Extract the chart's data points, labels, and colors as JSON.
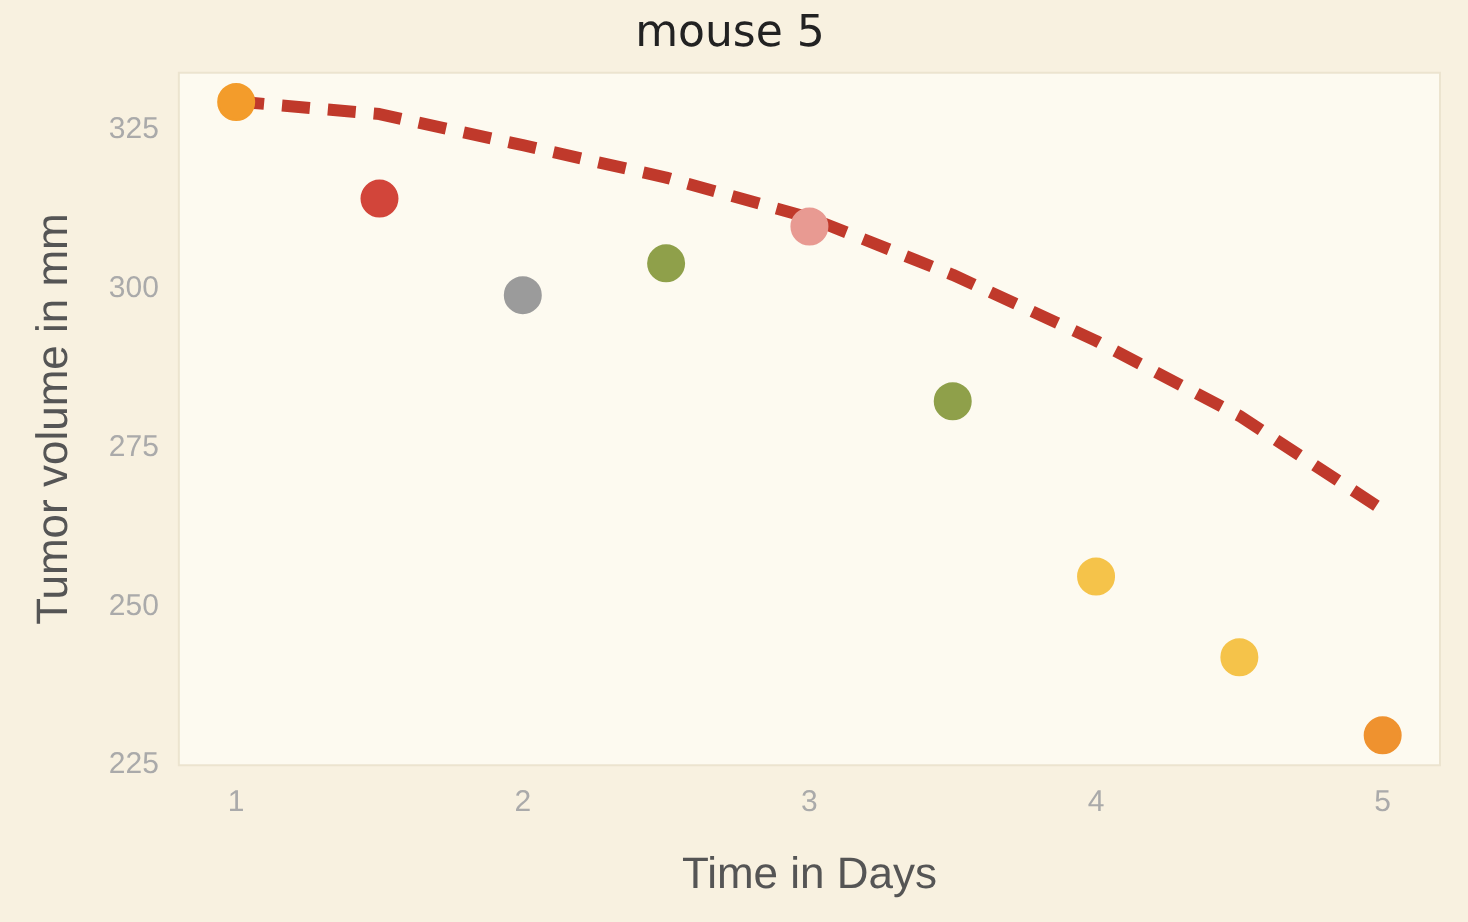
{
  "chart_data": {
    "type": "scatter",
    "title": "mouse 5",
    "xlabel": "Time in Days",
    "ylabel": "Tumor volume in mm",
    "xlim": [
      0.8,
      5.2
    ],
    "xticks": [
      1,
      2,
      3,
      4,
      5
    ],
    "ylim": [
      225,
      334
    ],
    "yticks": [
      225,
      250,
      275,
      300,
      325
    ],
    "grid": false,
    "legend": false,
    "marker": "circle",
    "series": [
      {
        "type": "line",
        "line_style": "dashed",
        "marker": "none",
        "color": "#c0392b",
        "x": [
          1,
          1.5,
          2,
          2.5,
          3,
          3.5,
          4,
          4.5,
          5
        ],
        "values": [
          329.5,
          327.5,
          322.6,
          317.5,
          311.2,
          302.2,
          291.8,
          280,
          265.2
        ]
      },
      {
        "x": [
          1,
          1.5,
          2,
          2.5,
          3,
          3.5,
          4,
          4.5,
          5
        ],
        "values": [
          329.4,
          314.2,
          299,
          304,
          309.8,
          282.3,
          254.7,
          242,
          229.7
        ],
        "colors": [
          "#f39c2b",
          "#d2453a",
          "#9b9b9b",
          "#8fa04a",
          "#e89a92",
          "#8fa04a",
          "#f5c34a",
          "#f5c34a",
          "#ef922f"
        ]
      }
    ]
  }
}
